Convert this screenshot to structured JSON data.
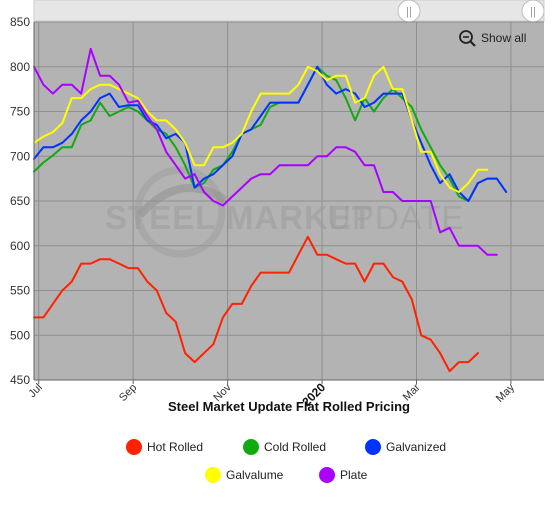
{
  "toolbar": {
    "show_all_label": "Show all",
    "zoom_icon": "zoom-out-icon",
    "slider_handle_icon": "drag-handle-icon"
  },
  "watermark": {
    "strong": "STEEL MARKET",
    "light": "UPDATE"
  },
  "chart_data": {
    "type": "line",
    "title": "Steel Market Update Flat Rolled Pricing",
    "xlabel": "",
    "ylabel": "",
    "ylim": [
      450,
      850
    ],
    "yticks": [
      450,
      500,
      550,
      600,
      650,
      700,
      750,
      800,
      850
    ],
    "grid": true,
    "legend_position": "bottom",
    "plot_background": "#b3b3b3",
    "x_tick_labels": [
      {
        "label": "Jul",
        "x": 0.5
      },
      {
        "label": "Sep",
        "x": 10.5
      },
      {
        "label": "Nov",
        "x": 20.5
      },
      {
        "label": "2020",
        "x": 30.5,
        "bold": true
      },
      {
        "label": "Mar",
        "x": 40.5
      },
      {
        "label": "May",
        "x": 50.5
      }
    ],
    "x_count": 55,
    "series": [
      {
        "name": "Hot Rolled",
        "color": "#ff2200",
        "values": [
          520,
          520,
          535,
          550,
          560,
          580,
          580,
          585,
          585,
          580,
          575,
          575,
          560,
          550,
          525,
          515,
          480,
          470,
          480,
          490,
          520,
          535,
          535,
          555,
          570,
          570,
          570,
          570,
          590,
          610,
          590,
          590,
          585,
          580,
          580,
          560,
          580,
          580,
          565,
          560,
          540,
          500,
          495,
          480,
          460,
          470,
          470,
          480
        ]
      },
      {
        "name": "Cold Rolled",
        "color": "#11aa11",
        "values": [
          683,
          693,
          701,
          710,
          710,
          735,
          740,
          760,
          745,
          750,
          755,
          750,
          740,
          730,
          725,
          710,
          690,
          665,
          670,
          685,
          690,
          705,
          725,
          730,
          735,
          755,
          760,
          760,
          760,
          780,
          800,
          790,
          785,
          765,
          740,
          765,
          750,
          765,
          775,
          765,
          755,
          730,
          710,
          690,
          675,
          655,
          650,
          670,
          675,
          675
        ]
      },
      {
        "name": "Galvanized",
        "color": "#0033ff",
        "values": [
          697,
          710,
          710,
          715,
          725,
          740,
          750,
          765,
          770,
          755,
          757,
          757,
          740,
          735,
          720,
          725,
          715,
          665,
          675,
          680,
          690,
          700,
          725,
          730,
          745,
          760,
          760,
          760,
          760,
          780,
          800,
          780,
          770,
          775,
          770,
          755,
          760,
          770,
          770,
          770,
          740,
          715,
          690,
          670,
          680,
          660,
          650,
          670,
          675,
          675,
          660
        ]
      },
      {
        "name": "Galvalume",
        "color": "#ffff00",
        "values": [
          715,
          722,
          727,
          737,
          765,
          765,
          775,
          780,
          780,
          775,
          770,
          765,
          750,
          740,
          740,
          730,
          715,
          690,
          690,
          710,
          710,
          715,
          725,
          750,
          770,
          770,
          770,
          770,
          780,
          800,
          795,
          785,
          790,
          790,
          760,
          765,
          790,
          800,
          775,
          775,
          740,
          705,
          705,
          680,
          665,
          660,
          670,
          685,
          685
        ]
      },
      {
        "name": "Plate",
        "color": "#aa00ff",
        "values": [
          800,
          780,
          770,
          780,
          780,
          770,
          820,
          790,
          790,
          780,
          760,
          762,
          745,
          730,
          705,
          690,
          675,
          680,
          660,
          650,
          645,
          655,
          665,
          675,
          680,
          680,
          690,
          690,
          690,
          690,
          700,
          700,
          710,
          710,
          705,
          690,
          690,
          660,
          660,
          650,
          650,
          650,
          650,
          615,
          620,
          600,
          600,
          600,
          590,
          590
        ]
      }
    ]
  }
}
